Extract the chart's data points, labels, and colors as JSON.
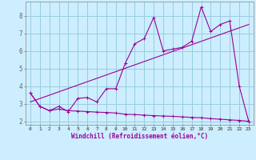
{
  "bg_color": "#cceeff",
  "line_color": "#990099",
  "grid_color": "#99ccdd",
  "xlabel": "Windchill (Refroidissement éolien,°C)",
  "xlim": [
    -0.5,
    23.5
  ],
  "ylim": [
    1.8,
    8.8
  ],
  "yticks": [
    2,
    3,
    4,
    5,
    6,
    7,
    8
  ],
  "xticks": [
    0,
    1,
    2,
    3,
    4,
    5,
    6,
    7,
    8,
    9,
    10,
    11,
    12,
    13,
    14,
    15,
    16,
    17,
    18,
    19,
    20,
    21,
    22,
    23
  ],
  "line1_x": [
    0,
    1,
    2,
    3,
    4,
    5,
    6,
    7,
    8,
    9,
    10,
    11,
    12,
    13,
    14,
    15,
    16,
    17,
    18,
    19,
    20,
    21,
    22,
    23
  ],
  "line1_y": [
    3.6,
    2.85,
    2.6,
    2.85,
    2.55,
    3.3,
    3.35,
    3.1,
    3.85,
    3.85,
    5.3,
    6.4,
    6.7,
    7.9,
    6.0,
    6.1,
    6.2,
    6.55,
    8.5,
    7.1,
    7.5,
    7.7,
    4.0,
    2.0
  ],
  "line2_x": [
    0,
    1,
    2,
    3,
    4,
    5,
    6,
    7,
    8,
    9,
    10,
    11,
    12,
    13,
    14,
    15,
    16,
    17,
    18,
    19,
    20,
    21,
    22,
    23
  ],
  "line2_y": [
    3.6,
    2.85,
    2.6,
    2.7,
    2.6,
    2.58,
    2.55,
    2.52,
    2.5,
    2.47,
    2.4,
    2.38,
    2.35,
    2.32,
    2.3,
    2.28,
    2.25,
    2.22,
    2.2,
    2.15,
    2.12,
    2.08,
    2.05,
    2.0
  ],
  "trend_x": [
    0,
    23
  ],
  "trend_y": [
    3.1,
    7.5
  ]
}
